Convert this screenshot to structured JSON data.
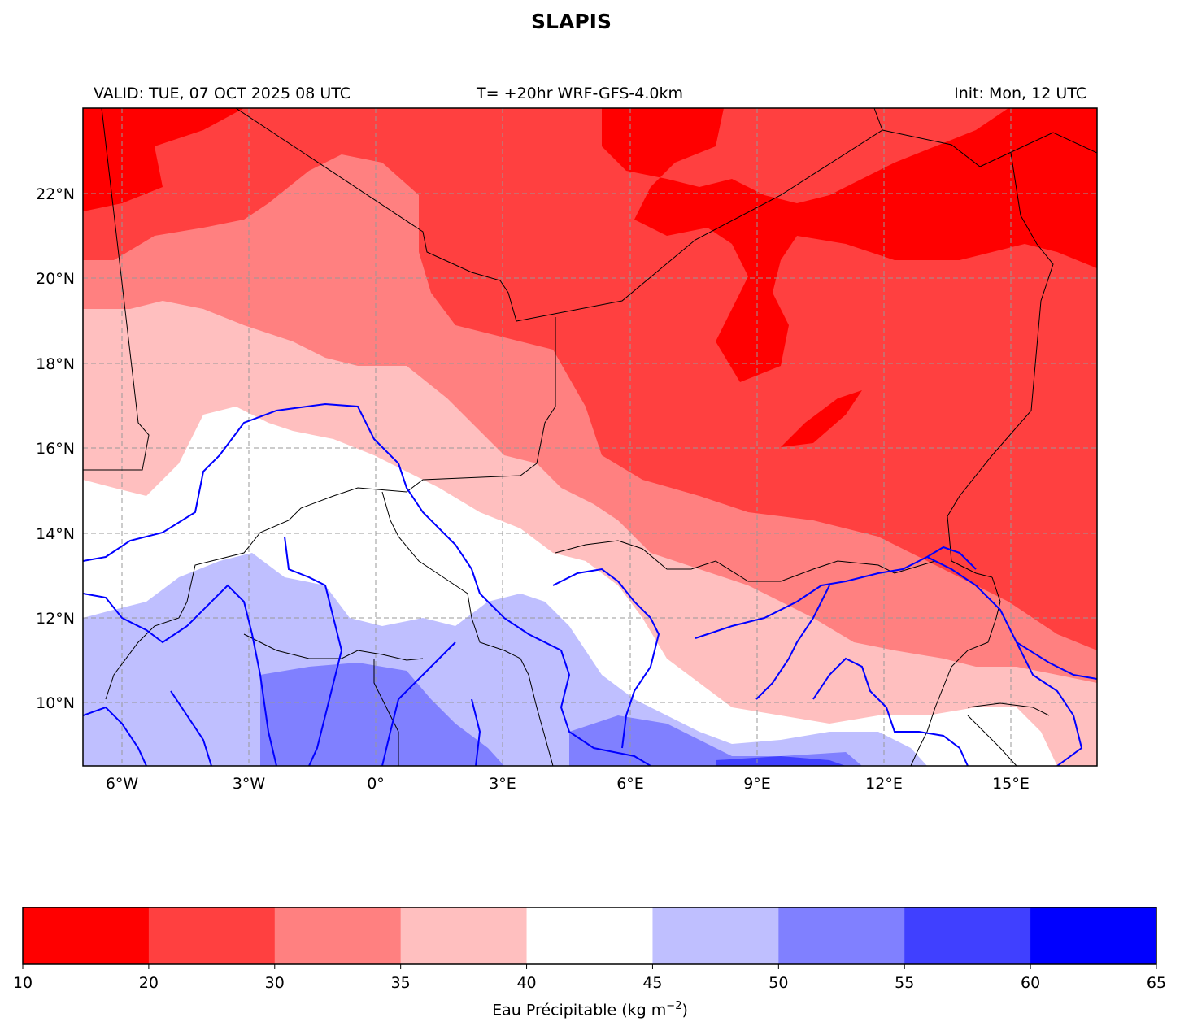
{
  "title": "SLAPIS",
  "subtitle": {
    "left": "VALID: TUE, 07 OCT 2025 08 UTC",
    "center": "T= +20hr WRF-GFS-4.0km",
    "right": "Init: Mon, 12 UTC"
  },
  "map": {
    "lon_range": [
      -7,
      17
    ],
    "lat_range": [
      8.5,
      24
    ],
    "lon_ticks": [
      "6°W",
      "3°W",
      "0°",
      "3°E",
      "6°E",
      "9°E",
      "12°E",
      "15°E"
    ],
    "lat_ticks": [
      "10°N",
      "12°N",
      "14°N",
      "16°N",
      "18°N",
      "20°N",
      "22°N"
    ],
    "gridlines": true,
    "field": "Precipitable water, filled contours",
    "overlays": [
      "country-borders",
      "rivers"
    ]
  },
  "colorbar": {
    "label_prefix": "Eau Précipitable (kg m",
    "label_exp": "−2",
    "label_suffix": ")",
    "levels": [
      "10",
      "20",
      "30",
      "35",
      "40",
      "45",
      "50",
      "55",
      "60",
      "65"
    ],
    "colors": [
      "#ff0000",
      "#ff4040",
      "#ff8080",
      "#ffbfbf",
      "#ffffff",
      "#bfbfff",
      "#8080ff",
      "#4040ff",
      "#0000ff"
    ],
    "placement": "bottom"
  }
}
